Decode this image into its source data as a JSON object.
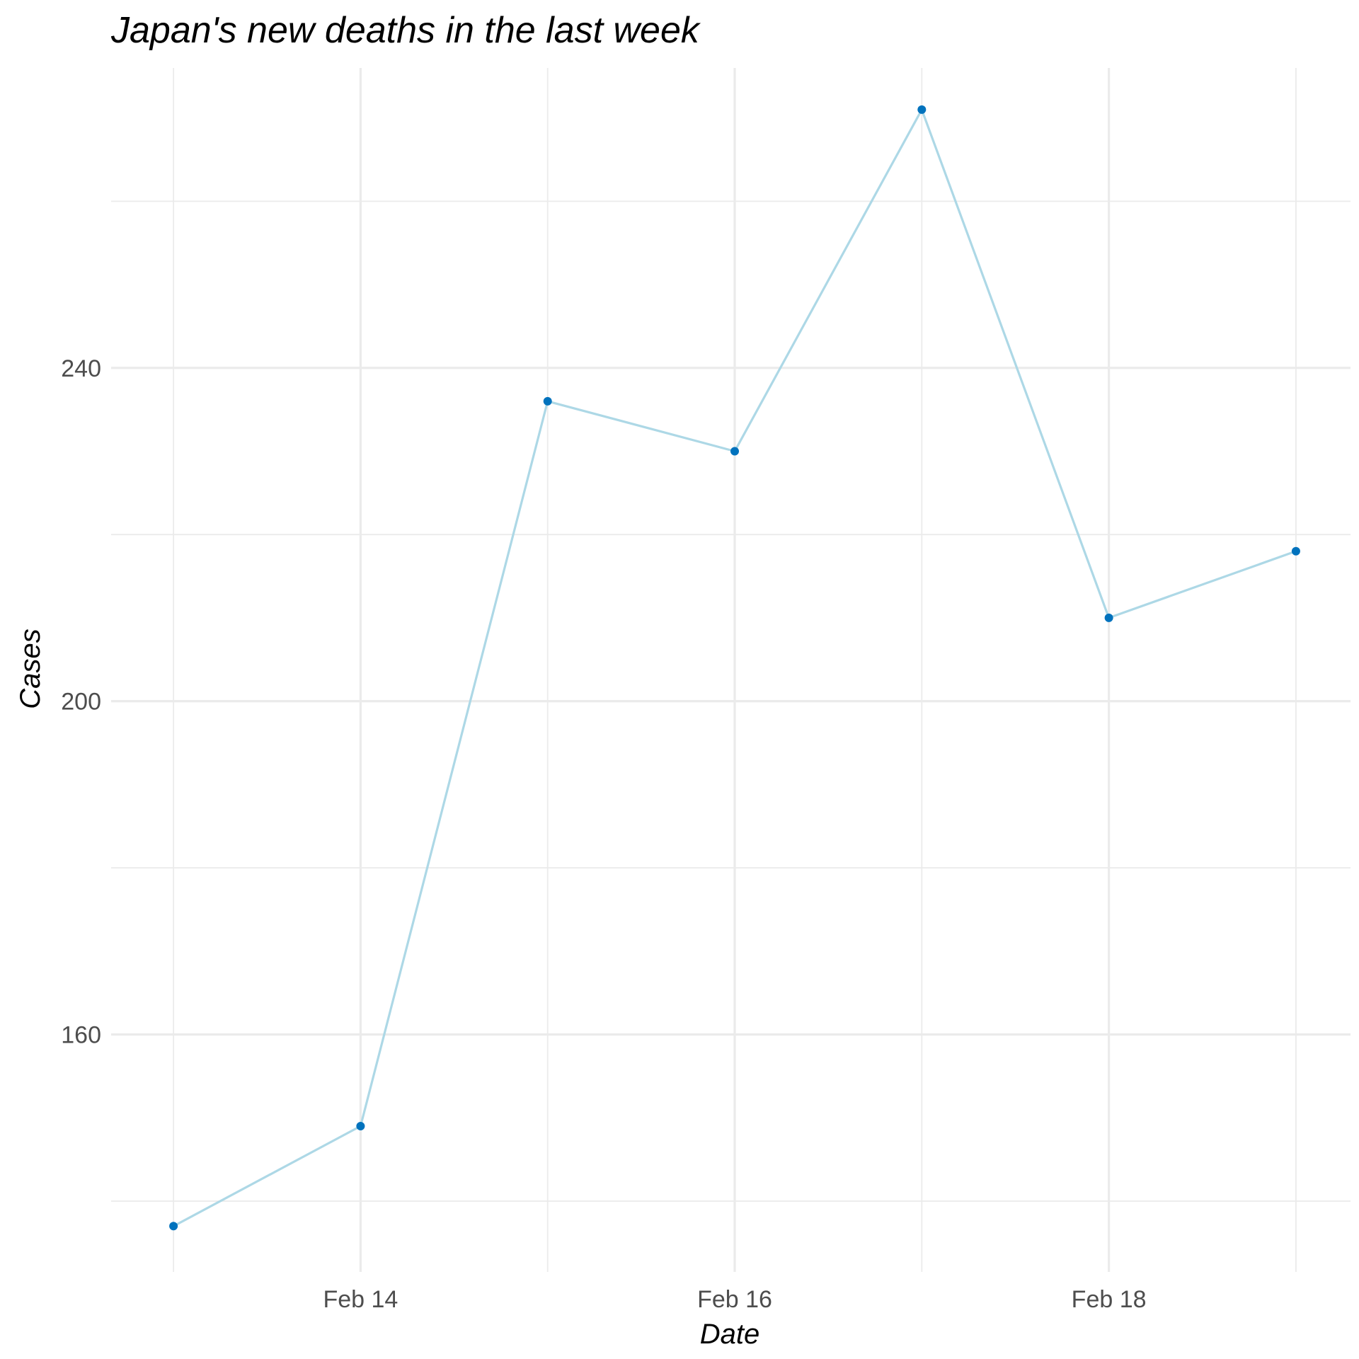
{
  "chart_data": {
    "type": "line",
    "title": "Japan's new deaths in the last week",
    "xlabel": "Date",
    "ylabel": "Cases",
    "x": [
      "2021-02-13",
      "2021-02-14",
      "2021-02-15",
      "2021-02-16",
      "2021-02-17",
      "2021-02-18",
      "2021-02-19"
    ],
    "x_ticks": [
      {
        "date": "2021-02-14",
        "label": "Feb 14"
      },
      {
        "date": "2021-02-16",
        "label": "Feb 16"
      },
      {
        "date": "2021-02-18",
        "label": "Feb 18"
      }
    ],
    "y_ticks": [
      160,
      200,
      240
    ],
    "xlim": [
      "2021-02-12T16:00",
      "2021-02-19T07:00"
    ],
    "ylim": [
      131.5,
      276
    ],
    "grid": true,
    "series": [
      {
        "values": [
          137,
          149,
          236,
          230,
          271,
          210,
          218
        ],
        "line_color": "#add8e6",
        "point_color": "#0072bd"
      }
    ]
  }
}
